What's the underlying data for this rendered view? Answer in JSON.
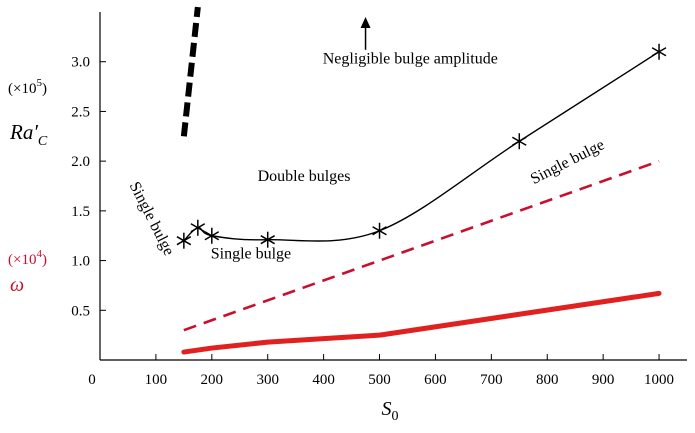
{
  "chart_data": {
    "type": "line",
    "xlim": [
      0,
      1050
    ],
    "ylim": [
      0,
      3.5
    ],
    "x_ticks": [
      "0",
      "100",
      "200",
      "300",
      "400",
      "500",
      "600",
      "700",
      "800",
      "900",
      "1000"
    ],
    "y_ticks": [
      "0.5",
      "1.0",
      "1.5",
      "2.0",
      "2.5",
      "3.0"
    ],
    "xlabel_main": "S",
    "xlabel_sub": "0",
    "ylabel_top": {
      "multiplier_prefix": "(×10",
      "multiplier_exp": "5",
      "multiplier_suffix": ")",
      "symbol": "Ra",
      "symbol_prime": "′",
      "symbol_sub": "C"
    },
    "ylabel_bottom": {
      "multiplier_prefix": "(×10",
      "multiplier_exp": "4",
      "multiplier_suffix": ")",
      "symbol": "ω"
    },
    "series": [
      {
        "style": "black line with asterisk markers",
        "color": "#000000",
        "x": [
          150,
          175,
          200,
          300,
          500,
          750,
          1000
        ],
        "y": [
          1.2,
          1.33,
          1.25,
          1.21,
          1.3,
          2.2,
          3.1
        ]
      },
      {
        "style": "thick black dashed",
        "color": "#000000",
        "x": [
          150,
          175
        ],
        "y": [
          2.25,
          3.55
        ]
      },
      {
        "style": "red dashed",
        "color": "#c8102e",
        "x": [
          150,
          1000
        ],
        "y": [
          0.3,
          2.0
        ]
      },
      {
        "style": "thick red solid",
        "color": "#e0211f",
        "x": [
          150,
          200,
          300,
          500,
          750,
          1000
        ],
        "y": [
          0.08,
          0.12,
          0.18,
          0.25,
          0.46,
          0.67
        ]
      }
    ],
    "annotations": [
      {
        "text": "Negligible bulge amplitude",
        "x": 555,
        "y": 2.98,
        "rotate": 0,
        "anchor": "middle"
      },
      {
        "text": "Double bulges",
        "x": 365,
        "y": 1.8,
        "rotate": 0,
        "anchor": "middle"
      },
      {
        "text": "Single bulge",
        "x": 270,
        "y": 1.02,
        "rotate": 0,
        "anchor": "middle"
      },
      {
        "text": "Single bulge",
        "x": 840,
        "y": 1.95,
        "rotate": -27,
        "anchor": "middle"
      },
      {
        "text": "Single bulge",
        "x": 85,
        "y": 1.4,
        "rotate": 63,
        "anchor": "middle"
      }
    ],
    "arrow": {
      "x": 475,
      "y_from": 3.12,
      "y_to": 3.45
    }
  }
}
